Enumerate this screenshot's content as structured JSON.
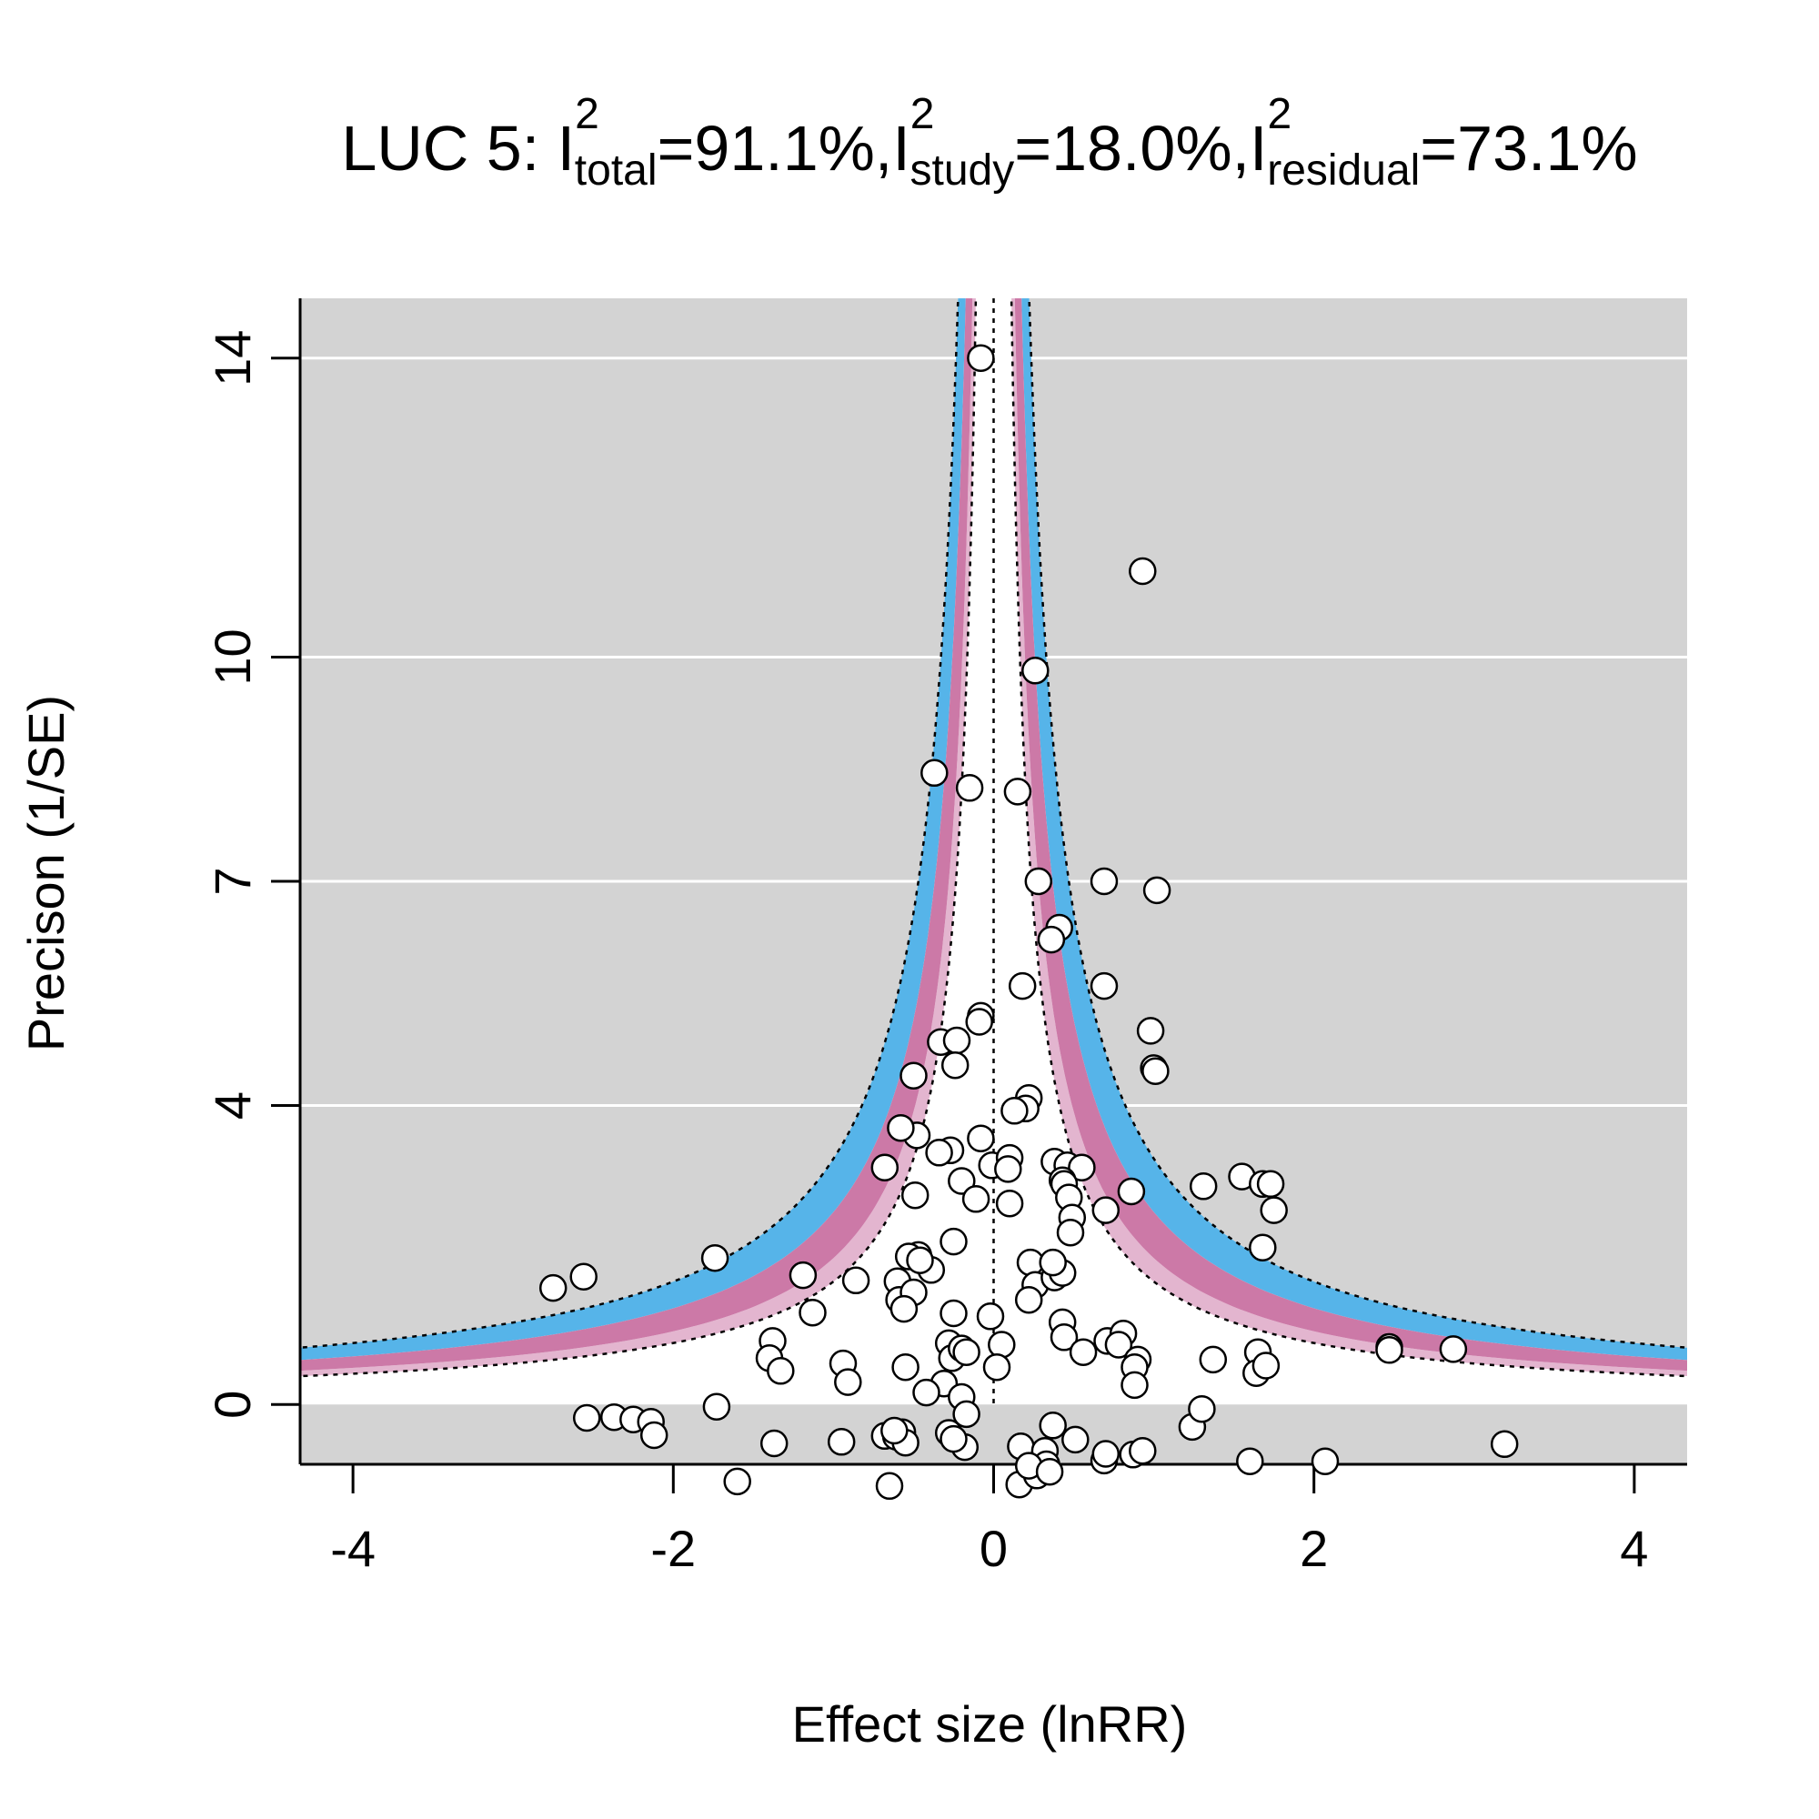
{
  "chart_data": {
    "type": "scatter",
    "title_parts": {
      "prefix": "LUC 5: ",
      "i_symbol": "I",
      "sup": "2",
      "total_sub": "total",
      "total_value": "=91.1%,",
      "study_sub": "study",
      "study_value": "=18.0%,",
      "residual_sub": "residual",
      "residual_value": "=73.1%"
    },
    "xlabel": "Effect size (lnRR)",
    "ylabel": "Precison (1/SE)",
    "xlim": [
      -4.33,
      4.33
    ],
    "ylim": [
      -0.8,
      14.8
    ],
    "x_ticks": [
      -4,
      -2,
      0,
      2,
      4
    ],
    "x_tick_labels": [
      "-4",
      "-2",
      "0",
      "2",
      "4"
    ],
    "y_ticks": [
      0,
      4,
      7,
      10,
      14
    ],
    "y_tick_labels": [
      "0",
      "4",
      "7",
      "10",
      "14"
    ],
    "grid_y": [
      4,
      7,
      10,
      14
    ],
    "colors": {
      "panel": "#d3d3d3",
      "funnel_inner": "#ffffff",
      "band_blue": "#56b4e9",
      "band_pink": "#cc79a7",
      "points_fill": "#ffffff",
      "points_stroke": "#000000"
    },
    "points": [
      [
        -0.08,
        14.0
      ],
      [
        0.93,
        11.15
      ],
      [
        0.26,
        9.82
      ],
      [
        -0.37,
        8.45
      ],
      [
        -0.15,
        8.25
      ],
      [
        0.15,
        8.2
      ],
      [
        0.28,
        7.0
      ],
      [
        0.69,
        7.0
      ],
      [
        0.41,
        6.38
      ],
      [
        1.02,
        6.88
      ],
      [
        0.36,
        6.22
      ],
      [
        0.18,
        5.6
      ],
      [
        0.69,
        5.6
      ],
      [
        -0.08,
        5.2
      ],
      [
        -0.09,
        5.12
      ],
      [
        0.98,
        5.0
      ],
      [
        -0.33,
        4.85
      ],
      [
        -0.23,
        4.87
      ],
      [
        1.0,
        4.5
      ],
      [
        1.01,
        4.46
      ],
      [
        -0.5,
        4.4
      ],
      [
        -0.24,
        4.54
      ],
      [
        0.22,
        4.1
      ],
      [
        0.2,
        3.96
      ],
      [
        -0.48,
        3.6
      ],
      [
        -0.58,
        3.7
      ],
      [
        -0.27,
        3.4
      ],
      [
        -0.08,
        3.56
      ],
      [
        0.13,
        3.93
      ],
      [
        0.38,
        3.25
      ],
      [
        0.46,
        3.2
      ],
      [
        0.55,
        3.17
      ],
      [
        0.43,
        3.0
      ],
      [
        -0.68,
        3.17
      ],
      [
        -0.34,
        3.37
      ],
      [
        -0.01,
        3.2
      ],
      [
        0.1,
        3.3
      ],
      [
        0.09,
        3.15
      ],
      [
        -0.2,
        2.99
      ],
      [
        0.44,
        2.95
      ],
      [
        -0.49,
        2.8
      ],
      [
        0.86,
        2.85
      ],
      [
        1.31,
        2.92
      ],
      [
        0.47,
        2.77
      ],
      [
        0.7,
        2.6
      ],
      [
        1.55,
        3.05
      ],
      [
        1.68,
        2.95
      ],
      [
        1.73,
        2.95
      ],
      [
        1.75,
        2.6
      ],
      [
        1.68,
        2.1
      ],
      [
        -0.11,
        2.75
      ],
      [
        0.1,
        2.69
      ],
      [
        -0.25,
        2.18
      ],
      [
        -0.47,
        2.0
      ],
      [
        -0.39,
        1.8
      ],
      [
        -1.74,
        1.96
      ],
      [
        -2.56,
        1.71
      ],
      [
        -2.75,
        1.56
      ],
      [
        -1.19,
        1.73
      ],
      [
        -0.86,
        1.66
      ],
      [
        -0.53,
        1.98
      ],
      [
        -0.46,
        1.93
      ],
      [
        -0.6,
        1.65
      ],
      [
        -0.59,
        1.4
      ],
      [
        -0.5,
        1.5
      ],
      [
        -0.56,
        1.28
      ],
      [
        -1.13,
        1.23
      ],
      [
        -0.25,
        1.22
      ],
      [
        -0.02,
        1.18
      ],
      [
        0.23,
        1.9
      ],
      [
        0.26,
        1.6
      ],
      [
        0.22,
        1.4
      ],
      [
        0.38,
        1.7
      ],
      [
        0.43,
        1.76
      ],
      [
        0.37,
        1.9
      ],
      [
        0.49,
        2.5
      ],
      [
        0.48,
        2.3
      ],
      [
        0.43,
        1.1
      ],
      [
        0.44,
        0.9
      ],
      [
        0.56,
        0.7
      ],
      [
        0.71,
        0.85
      ],
      [
        0.81,
        0.95
      ],
      [
        0.78,
        0.8
      ],
      [
        0.9,
        0.6
      ],
      [
        1.37,
        0.6
      ],
      [
        1.65,
        0.7
      ],
      [
        1.64,
        0.42
      ],
      [
        1.7,
        0.52
      ],
      [
        2.47,
        0.77
      ],
      [
        2.47,
        0.73
      ],
      [
        2.87,
        0.74
      ],
      [
        -1.38,
        0.85
      ],
      [
        -1.4,
        0.62
      ],
      [
        -1.33,
        0.45
      ],
      [
        -0.94,
        0.55
      ],
      [
        -0.91,
        0.3
      ],
      [
        -0.55,
        0.5
      ],
      [
        -0.28,
        0.82
      ],
      [
        -0.26,
        0.62
      ],
      [
        -0.2,
        0.75
      ],
      [
        -0.17,
        0.7
      ],
      [
        0.05,
        0.8
      ],
      [
        0.02,
        0.5
      ],
      [
        -0.31,
        0.28
      ],
      [
        -0.2,
        0.1
      ],
      [
        -0.17,
        -0.13
      ],
      [
        -0.28,
        -0.38
      ],
      [
        -0.18,
        -0.57
      ],
      [
        -0.25,
        -0.46
      ],
      [
        -0.68,
        -0.42
      ],
      [
        -0.61,
        -0.43
      ],
      [
        -0.57,
        -0.37
      ],
      [
        -0.55,
        -0.51
      ],
      [
        -0.62,
        -0.35
      ],
      [
        -0.95,
        -0.5
      ],
      [
        -1.73,
        -0.03
      ],
      [
        -1.37,
        -0.52
      ],
      [
        -2.54,
        -0.18
      ],
      [
        -2.37,
        -0.17
      ],
      [
        -2.25,
        -0.2
      ],
      [
        -2.14,
        -0.23
      ],
      [
        -2.12,
        -0.41
      ],
      [
        -0.42,
        0.16
      ],
      [
        0.17,
        -0.56
      ],
      [
        0.32,
        -0.62
      ],
      [
        0.33,
        -0.8
      ],
      [
        0.37,
        -0.28
      ],
      [
        0.51,
        -0.47
      ],
      [
        0.69,
        -0.75
      ],
      [
        0.7,
        -0.66
      ],
      [
        0.88,
        0.5
      ],
      [
        0.88,
        0.26
      ],
      [
        0.87,
        -0.67
      ],
      [
        0.93,
        -0.62
      ],
      [
        1.24,
        -0.3
      ],
      [
        1.3,
        -0.06
      ],
      [
        1.6,
        -0.76
      ],
      [
        2.07,
        -0.76
      ],
      [
        3.19,
        -0.53
      ],
      [
        -1.6,
        -1.03
      ],
      [
        -0.65,
        -1.09
      ],
      [
        0.16,
        -1.07
      ],
      [
        0.27,
        -0.95
      ],
      [
        0.22,
        -0.82
      ],
      [
        0.35,
        -0.9
      ]
    ]
  }
}
